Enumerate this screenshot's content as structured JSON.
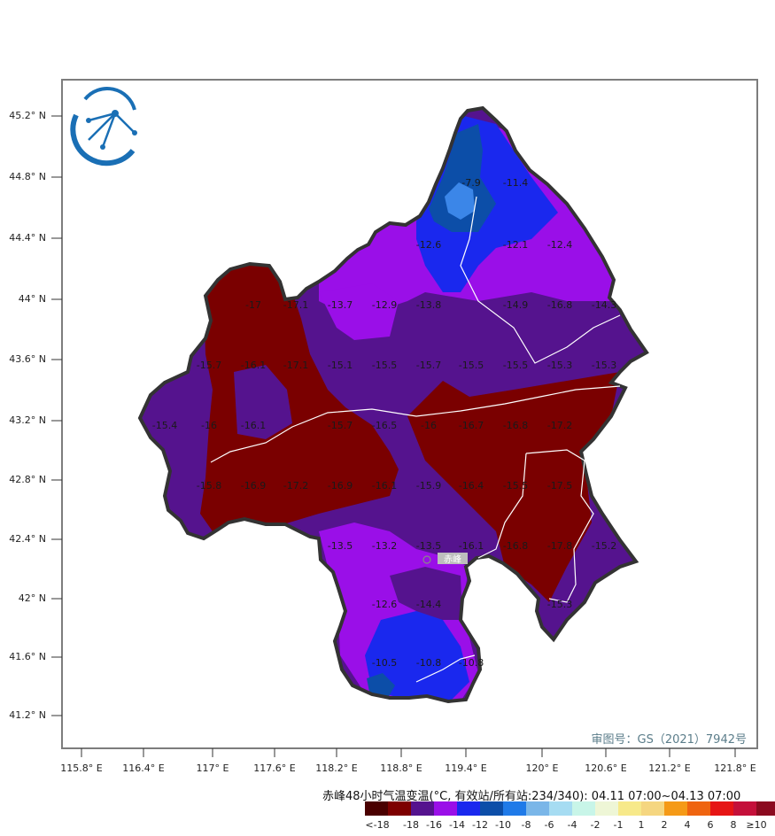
{
  "map": {
    "latitude_labels": [
      "45.2° N",
      "44.8° N",
      "44.4° N",
      "44° N",
      "43.6° N",
      "43.2° N",
      "42.8° N",
      "42.4° N",
      "42° N",
      "41.6° N",
      "41.2° N"
    ],
    "longitude_labels": [
      "115.8° E",
      "116.4° E",
      "117° E",
      "117.6° E",
      "118.2° E",
      "118.8° E",
      "119.4° E",
      "120° E",
      "120.6° E",
      "121.2° E",
      "121.8° E"
    ],
    "approval_number": "审图号：GS（2021）7942号",
    "city_label": "赤峰",
    "station_values": [
      "-7.9",
      "-11.4",
      "-12.6",
      "-12.1",
      "-12.4",
      "-17",
      "-17.1",
      "-13.7",
      "-12.9",
      "-13.8",
      "-14.9",
      "-16.8",
      "-14.3",
      "-15.7",
      "-16.1",
      "-17.1",
      "-15.1",
      "-15.5",
      "-15.7",
      "-15.5",
      "-15.5",
      "-15.3",
      "-15.3",
      "-15.4",
      "-16",
      "-16.1",
      "-15.7",
      "-16.5",
      "-16",
      "-16.7",
      "-16.8",
      "-17.2",
      "-15.8",
      "-16.9",
      "-17.2",
      "-16.9",
      "-16.1",
      "-15.9",
      "-16.4",
      "-15.5",
      "-17.5",
      "-13.5",
      "-13.2",
      "-13.5",
      "-16.1",
      "-16.8",
      "-17.8",
      "-15.2",
      "-12.6",
      "-14.4",
      "-15.3",
      "-10.5",
      "-10.8",
      "-10.8"
    ],
    "colors": {
      "dark_maroon": "#7a0000",
      "dark_purple": "#55138e",
      "purple": "#9a0fe8",
      "blue": "#1a28ee",
      "dark_blue": "#0c4ea8",
      "light_blue": "#3b86e8",
      "border": "#333333"
    }
  },
  "legend": {
    "title": "赤峰48小时气温变温(°C, 有效站/所有站:234/340): 04.11 07:00~04.13 07:00",
    "labels": [
      "<-18",
      "-18",
      "-16",
      "-14",
      "-12",
      "-10",
      "-8",
      "-6",
      "-4",
      "-2",
      "-1",
      "1",
      "2",
      "4",
      "6",
      "8",
      "≥10"
    ],
    "colors": [
      "#4a0000",
      "#7d0000",
      "#55138e",
      "#9a0fe8",
      "#1a28ee",
      "#0c4ea8",
      "#1f7ae8",
      "#7ab6e8",
      "#a6dcf2",
      "#c8f5e8",
      "#eef6d6",
      "#f7e98a",
      "#f5d680",
      "#f59a17",
      "#ef6410",
      "#e61515",
      "#c4103a",
      "#8b0a1f"
    ]
  }
}
